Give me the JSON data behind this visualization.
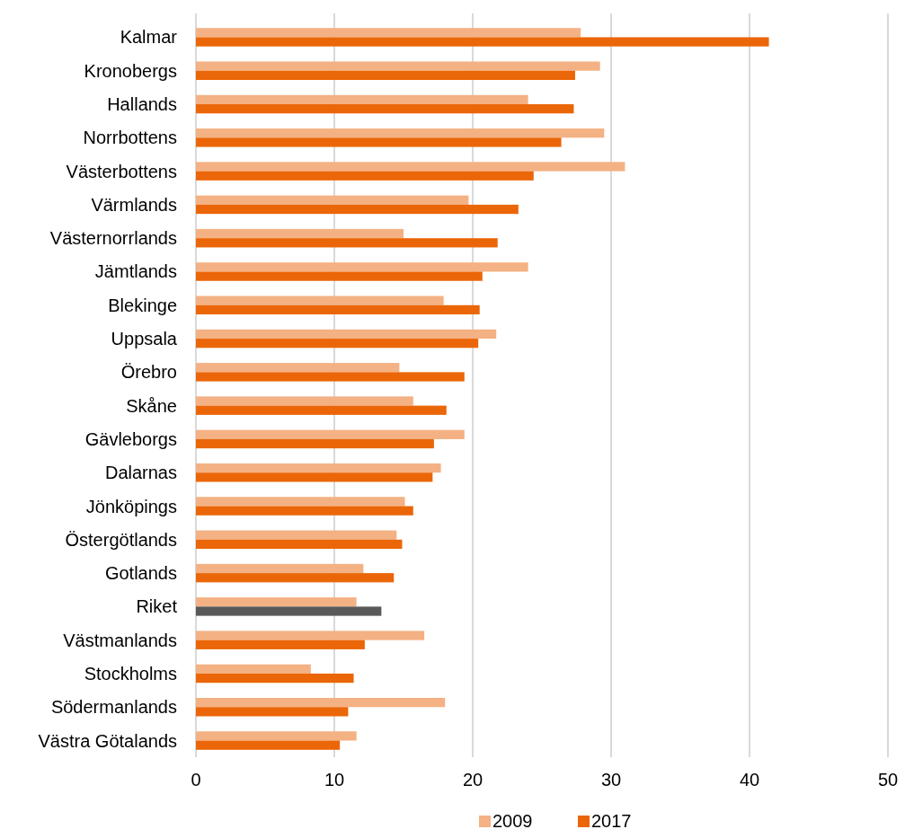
{
  "chart_data": {
    "type": "bar",
    "orientation": "horizontal",
    "categories": [
      "Kalmar",
      "Kronobergs",
      "Hallands",
      "Norrbottens",
      "Västerbottens",
      "Värmlands",
      "Västernorrlands",
      "Jämtlands",
      "Blekinge",
      "Uppsala",
      "Örebro",
      "Skåne",
      "Gävleborgs",
      "Dalarnas",
      "Jönköpings",
      "Östergötlands",
      "Gotlands",
      "Riket",
      "Västmanlands",
      "Stockholms",
      "Södermanlands",
      "Västra Götalands"
    ],
    "series": [
      {
        "name": "2009",
        "color": "#f4b183",
        "values": [
          27.8,
          29.2,
          24.0,
          29.5,
          31.0,
          19.7,
          15.0,
          24.0,
          17.9,
          21.7,
          14.7,
          15.7,
          19.4,
          17.7,
          15.1,
          14.5,
          12.1,
          11.6,
          16.5,
          8.3,
          18.0,
          11.6
        ]
      },
      {
        "name": "2017",
        "color": "#eb6608",
        "colors": [
          "#eb6608",
          "#eb6608",
          "#eb6608",
          "#eb6608",
          "#eb6608",
          "#eb6608",
          "#eb6608",
          "#eb6608",
          "#eb6608",
          "#eb6608",
          "#eb6608",
          "#eb6608",
          "#eb6608",
          "#eb6608",
          "#eb6608",
          "#eb6608",
          "#eb6608",
          "#595959",
          "#eb6608",
          "#eb6608",
          "#eb6608",
          "#eb6608"
        ],
        "values": [
          41.4,
          27.4,
          27.3,
          26.4,
          24.4,
          23.3,
          21.8,
          20.7,
          20.5,
          20.4,
          19.4,
          18.1,
          17.2,
          17.1,
          15.7,
          14.9,
          14.3,
          13.4,
          12.2,
          11.4,
          11.0,
          10.4
        ]
      }
    ],
    "xlim": [
      0,
      50
    ],
    "xticks": [
      0,
      10,
      20,
      30,
      40,
      50
    ],
    "grid": "x",
    "legend": "bottom"
  }
}
